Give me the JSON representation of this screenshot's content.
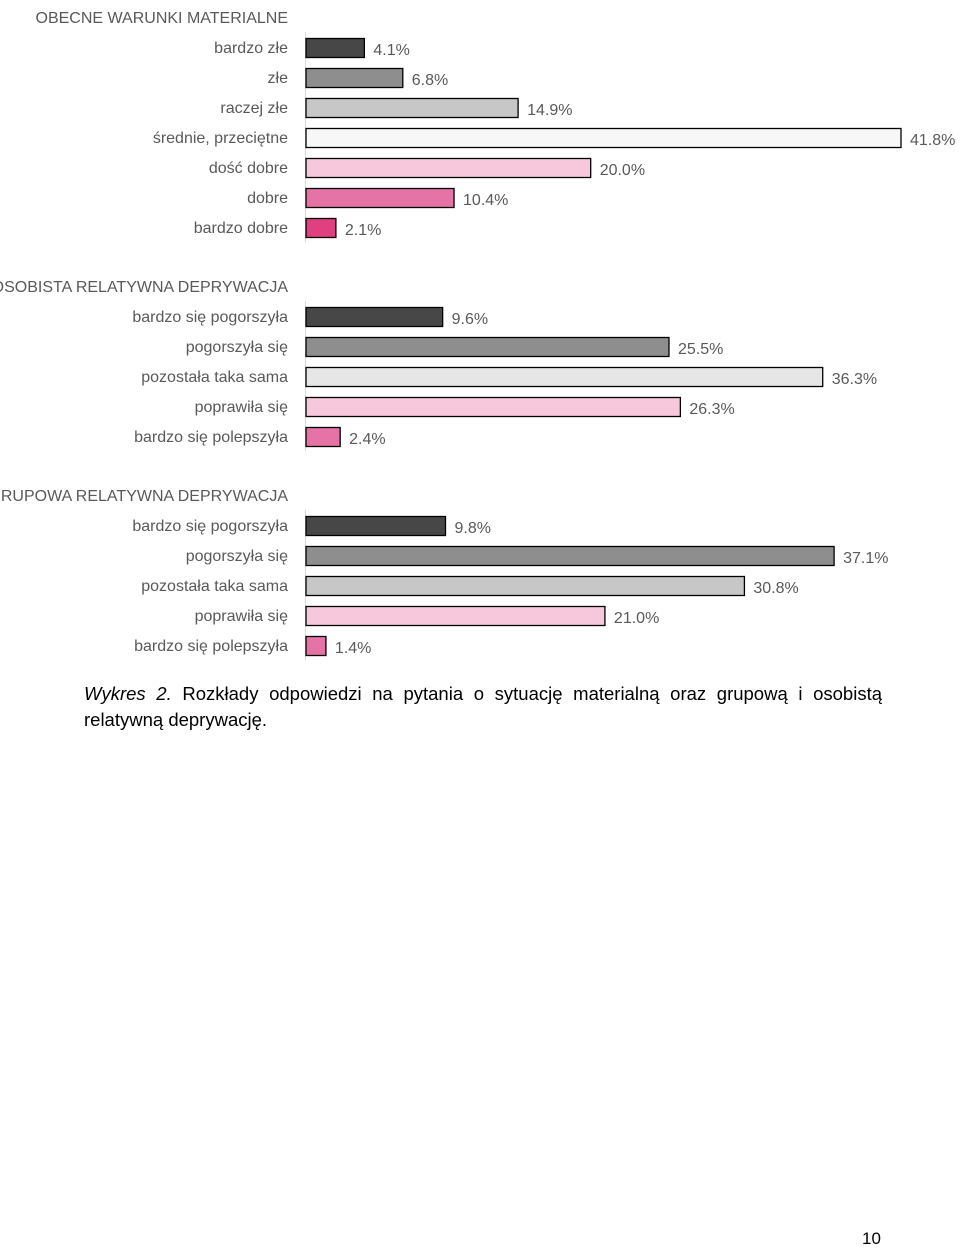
{
  "chart_data": [
    {
      "type": "bar",
      "orientation": "horizontal",
      "title": "OBECNE WARUNKI MATERIALNE",
      "categories": [
        "bardzo złe",
        "złe",
        "raczej złe",
        "średnie, przeciętne",
        "dość dobre",
        "dobre",
        "bardzo dobre"
      ],
      "values": [
        4.1,
        6.8,
        14.9,
        41.8,
        20.0,
        10.4,
        2.1
      ],
      "value_labels": [
        "4.1%",
        "6.8%",
        "14.9%",
        "41.8%",
        "20.0%",
        "10.4%",
        "2.1%"
      ],
      "colors": [
        "#474747",
        "#8e8e8e",
        "#c7c7c7",
        "#f7f7f7",
        "#f7c8dc",
        "#e673a5",
        "#e0407f"
      ],
      "unit": "%"
    },
    {
      "type": "bar",
      "orientation": "horizontal",
      "title": "OSOBISTA RELATYWNA DEPRYWACJA",
      "categories": [
        "bardzo się pogorszyła",
        "pogorszyła się",
        "pozostała taka sama",
        "poprawiła się",
        "bardzo się polepszyła"
      ],
      "values": [
        9.6,
        25.5,
        36.3,
        26.3,
        2.4
      ],
      "value_labels": [
        "9.6%",
        "25.5%",
        "36.3%",
        "26.3%",
        "2.4%"
      ],
      "colors": [
        "#474747",
        "#8e8e8e",
        "#e6e6e6",
        "#f7c8dc",
        "#e673a5"
      ],
      "unit": "%"
    },
    {
      "type": "bar",
      "orientation": "horizontal",
      "title": "GRUPOWA RELATYWNA DEPRYWACJA",
      "categories": [
        "bardzo się pogorszyła",
        "pogorszyła się",
        "pozostała taka sama",
        "poprawiła się",
        "bardzo się polepszyła"
      ],
      "values": [
        9.8,
        37.1,
        30.8,
        21.0,
        1.4
      ],
      "value_labels": [
        "9.8%",
        "37.1%",
        "30.8%",
        "21.0%",
        "1.4%"
      ],
      "colors": [
        "#474747",
        "#8e8e8e",
        "#c7c7c7",
        "#f7c8dc",
        "#e673a5"
      ],
      "unit": "%"
    }
  ],
  "caption": {
    "label": "Wykres 2.",
    "text": "Rozkłady odpowiedzi na pytania o sytuację materialną oraz grupową i osobistą relatywną deprywację."
  },
  "page_number": "10",
  "colors": {
    "label_text": "#595959",
    "bar_border": "#000000",
    "axis": "#d9d9d9"
  }
}
